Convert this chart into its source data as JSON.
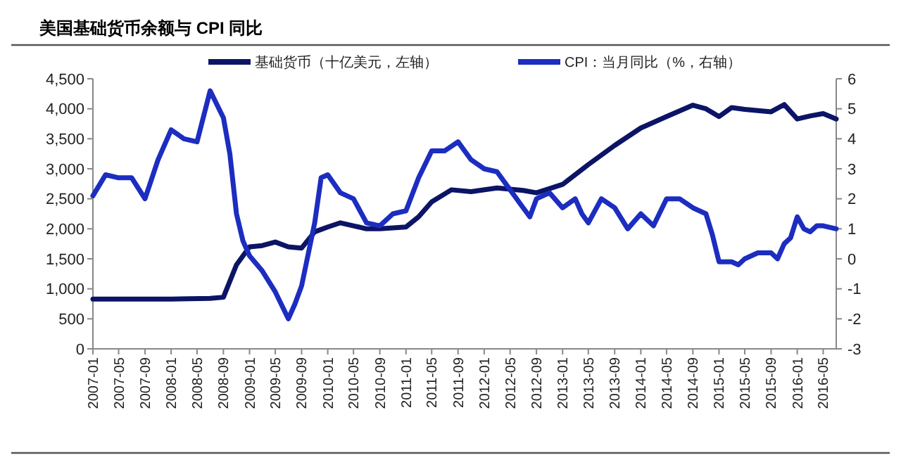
{
  "chart_data": {
    "type": "line",
    "title": "美国基础货币余额与 CPI 同比",
    "legend": "top",
    "grid": false,
    "marker": "none",
    "line_style": "solid",
    "xlim": [
      "2007-01",
      "2016-07"
    ],
    "xticks": [
      "2007-01",
      "2007-05",
      "2007-09",
      "2008-01",
      "2008-05",
      "2008-09",
      "2009-01",
      "2009-05",
      "2009-09",
      "2010-01",
      "2010-05",
      "2010-09",
      "2011-01",
      "2011-05",
      "2011-09",
      "2012-01",
      "2012-05",
      "2012-09",
      "2013-01",
      "2013-05",
      "2013-09",
      "2014-01",
      "2014-05",
      "2014-09",
      "2015-01",
      "2015-05",
      "2015-09",
      "2016-01",
      "2016-05"
    ],
    "ylim": [
      0,
      4500
    ],
    "yticks": [
      0,
      {
        "value": 500,
        "label": "500"
      },
      {
        "value": 1000,
        "label": "1,000"
      },
      {
        "value": 1500,
        "label": "1,500"
      },
      {
        "value": 2000,
        "label": "2,000"
      },
      {
        "value": 2500,
        "label": "2,500"
      },
      {
        "value": 3000,
        "label": "3,000"
      },
      {
        "value": 3500,
        "label": "3,500"
      },
      {
        "value": 4000,
        "label": "4,000"
      },
      {
        "value": 4500,
        "label": "4,500"
      }
    ],
    "y2lim": [
      -3,
      6
    ],
    "y2ticks": [
      -3,
      -2,
      -1,
      0,
      1,
      2,
      3,
      4,
      5,
      6
    ],
    "series": [
      {
        "name": "基础货币（十亿美元，左轴）",
        "color": "#0c1466",
        "x": [
          "2007-01",
          "2007-07",
          "2008-01",
          "2008-07",
          "2008-09",
          "2008-11",
          "2009-01",
          "2009-03",
          "2009-05",
          "2009-07",
          "2009-09",
          "2009-11",
          "2010-01",
          "2010-03",
          "2010-05",
          "2010-07",
          "2010-09",
          "2011-01",
          "2011-03",
          "2011-05",
          "2011-08",
          "2011-11",
          "2012-03",
          "2012-07",
          "2012-09",
          "2013-01",
          "2013-05",
          "2013-09",
          "2014-01",
          "2014-05",
          "2014-09",
          "2014-11",
          "2015-01",
          "2015-03",
          "2015-05",
          "2015-09",
          "2015-11",
          "2016-01",
          "2016-03",
          "2016-05",
          "2016-07"
        ],
        "values": [
          830,
          830,
          830,
          840,
          860,
          1400,
          1700,
          1720,
          1780,
          1700,
          1680,
          1950,
          2030,
          2100,
          2050,
          2000,
          2000,
          2030,
          2200,
          2450,
          2650,
          2620,
          2680,
          2640,
          2600,
          2740,
          3070,
          3390,
          3680,
          3870,
          4060,
          4000,
          3870,
          4020,
          3990,
          3950,
          4070,
          3830,
          3880,
          3920,
          3830
        ]
      },
      {
        "name": "CPI：当月同比（%，右轴）",
        "color": "#1c2dc0",
        "axis": "y2",
        "x": [
          "2007-01",
          "2007-03",
          "2007-05",
          "2007-07",
          "2007-09",
          "2007-11",
          "2008-01",
          "2008-03",
          "2008-05",
          "2008-07",
          "2008-09",
          "2008-10",
          "2008-11",
          "2008-12",
          "2009-01",
          "2009-03",
          "2009-05",
          "2009-07",
          "2009-08",
          "2009-09",
          "2009-11",
          "2009-12",
          "2010-01",
          "2010-03",
          "2010-05",
          "2010-07",
          "2010-09",
          "2010-11",
          "2011-01",
          "2011-03",
          "2011-05",
          "2011-07",
          "2011-09",
          "2011-11",
          "2012-01",
          "2012-03",
          "2012-05",
          "2012-07",
          "2012-08",
          "2012-09",
          "2012-11",
          "2013-01",
          "2013-03",
          "2013-04",
          "2013-05",
          "2013-07",
          "2013-09",
          "2013-11",
          "2014-01",
          "2014-03",
          "2014-05",
          "2014-07",
          "2014-09",
          "2014-11",
          "2014-12",
          "2015-01",
          "2015-03",
          "2015-04",
          "2015-05",
          "2015-07",
          "2015-09",
          "2015-10",
          "2015-11",
          "2015-12",
          "2016-01",
          "2016-02",
          "2016-03",
          "2016-04",
          "2016-05",
          "2016-07"
        ],
        "values": [
          2.1,
          2.8,
          2.7,
          2.7,
          2.0,
          3.3,
          4.3,
          4.0,
          3.9,
          5.6,
          4.7,
          3.5,
          1.5,
          0.6,
          0.1,
          -0.4,
          -1.1,
          -2.0,
          -1.5,
          -0.9,
          1.2,
          2.7,
          2.8,
          2.2,
          2.0,
          1.2,
          1.1,
          1.5,
          1.6,
          2.7,
          3.6,
          3.6,
          3.9,
          3.3,
          3.0,
          2.9,
          2.3,
          1.7,
          1.4,
          2.0,
          2.2,
          1.7,
          2.0,
          1.5,
          1.2,
          2.0,
          1.7,
          1.0,
          1.5,
          1.1,
          2.0,
          2.0,
          1.7,
          1.5,
          0.8,
          -0.1,
          -0.1,
          -0.2,
          0.0,
          0.2,
          0.2,
          0.0,
          0.5,
          0.7,
          1.4,
          1.0,
          0.9,
          1.1,
          1.1,
          1.0
        ]
      }
    ]
  }
}
